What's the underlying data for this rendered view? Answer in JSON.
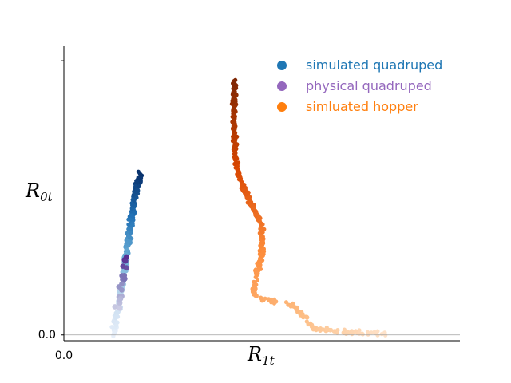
{
  "chart_data": {
    "type": "scatter",
    "xlabel": {
      "main": "R",
      "sub": "1t"
    },
    "ylabel": {
      "main": "R",
      "sub": "0t"
    },
    "xlim": [
      0,
      1
    ],
    "ylim": [
      -0.02,
      1
    ],
    "x_tick_labels": [
      "0.0"
    ],
    "y_tick_labels": [
      "0.0"
    ],
    "y_ticks": [
      0,
      0.95
    ],
    "zero_line": true,
    "legend_position": "top-right",
    "series": [
      {
        "name": "simulated quadruped",
        "legend_color": "#1f77b4",
        "colormap": "blues",
        "spine": [
          [
            0.125,
            0.0
          ],
          [
            0.135,
            0.08
          ],
          [
            0.145,
            0.16
          ],
          [
            0.155,
            0.25
          ],
          [
            0.165,
            0.35
          ],
          [
            0.175,
            0.45
          ],
          [
            0.185,
            0.52
          ],
          [
            0.195,
            0.56
          ]
        ],
        "points": 300,
        "spread": [
          0.009,
          0.012
        ]
      },
      {
        "name": "physical quadruped",
        "legend_color": "#9467bd",
        "colormap": "purples",
        "spine": [
          [
            0.125,
            0.05
          ],
          [
            0.14,
            0.12
          ],
          [
            0.15,
            0.2
          ],
          [
            0.155,
            0.27
          ]
        ],
        "points": 22,
        "spread": [
          0.012,
          0.015
        ]
      },
      {
        "name": "simluated hopper",
        "legend_color": "#ff7f0e",
        "colormap": "oranges",
        "spine": [
          [
            0.82,
            0.005
          ],
          [
            0.72,
            0.01
          ],
          [
            0.63,
            0.02
          ],
          [
            0.61,
            0.06
          ],
          [
            0.57,
            0.11
          ],
          [
            0.5,
            0.125
          ],
          [
            0.48,
            0.14
          ],
          [
            0.485,
            0.2
          ],
          [
            0.5,
            0.28
          ],
          [
            0.5,
            0.38
          ],
          [
            0.47,
            0.46
          ],
          [
            0.445,
            0.53
          ],
          [
            0.435,
            0.6
          ],
          [
            0.43,
            0.68
          ],
          [
            0.43,
            0.75
          ],
          [
            0.43,
            0.82
          ],
          [
            0.43,
            0.88
          ]
        ],
        "points": 460,
        "spread": [
          0.008,
          0.012
        ]
      }
    ]
  }
}
